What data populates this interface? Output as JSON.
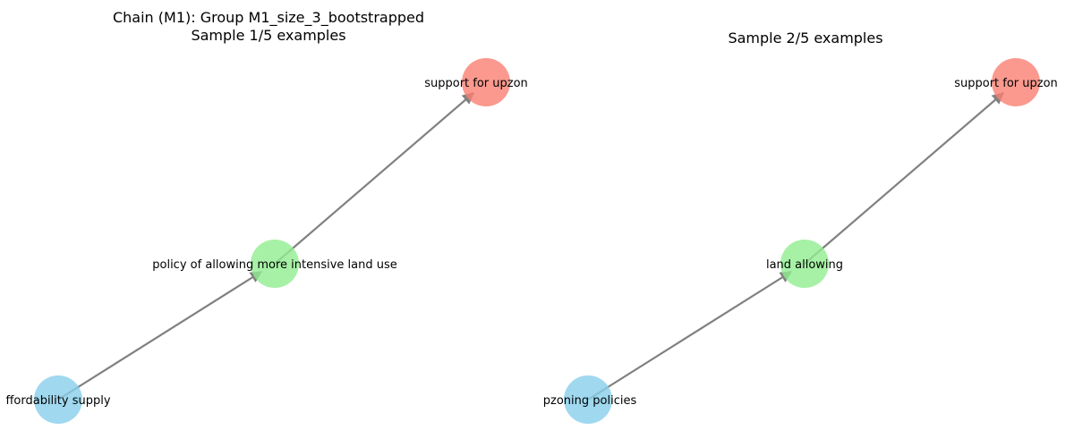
{
  "colors": {
    "source": "#87ceeb",
    "middle": "#90ee90",
    "target": "#fa8072",
    "edge": "#808080"
  },
  "panels": [
    {
      "title_line1": "Chain (M1): Group M1_size_3_bootstrapped",
      "title_line2": "Sample 1/5 examples",
      "nodes": {
        "source": "ffordability supply",
        "middle": "policy of allowing more intensive land use",
        "target": "support for upzon"
      }
    },
    {
      "title_line1": "",
      "title_line2": "Sample 2/5 examples",
      "nodes": {
        "source": "pzoning policies",
        "middle": "land allowing",
        "target": "support for upzon"
      }
    }
  ]
}
